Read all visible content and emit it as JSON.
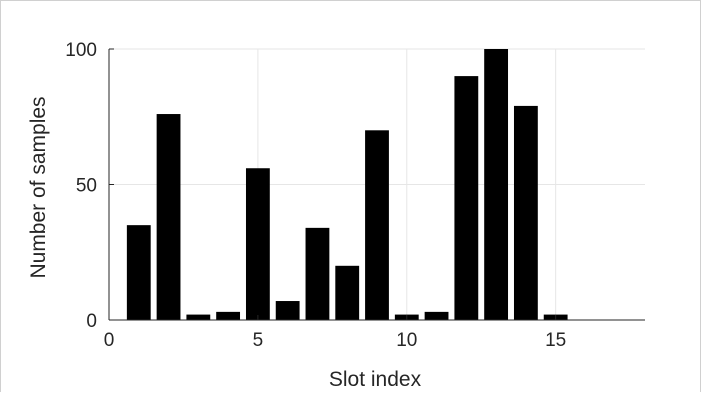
{
  "chart_data": {
    "type": "bar",
    "x": [
      1,
      2,
      3,
      4,
      5,
      6,
      7,
      8,
      9,
      10,
      11,
      12,
      13,
      14,
      15,
      16,
      17
    ],
    "values": [
      35,
      76,
      2,
      3,
      56,
      7,
      34,
      20,
      70,
      2,
      3,
      90,
      100,
      79,
      2,
      0,
      0
    ],
    "xlabel": "Slot index",
    "ylabel": "Number of samples",
    "xlim": [
      0,
      18
    ],
    "ylim": [
      0,
      100
    ],
    "xticks": [
      0,
      5,
      10,
      15
    ],
    "yticks": [
      0,
      50,
      100
    ],
    "grid": true,
    "bar_color": "#000000",
    "grid_color": "#e6e6e6",
    "axis_color": "#262626"
  }
}
